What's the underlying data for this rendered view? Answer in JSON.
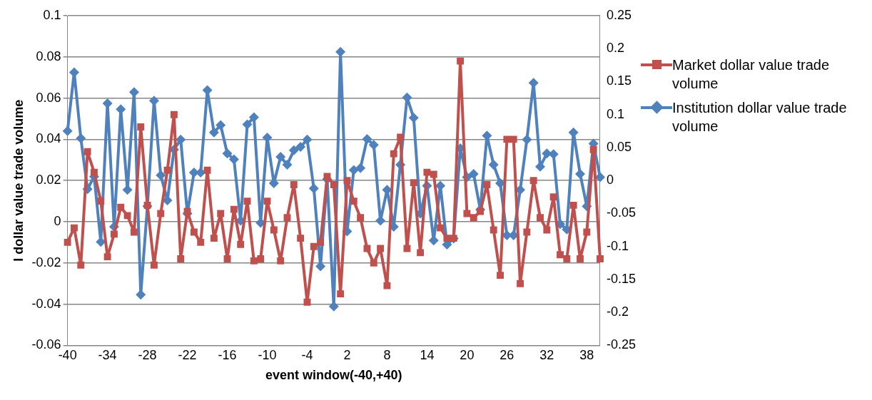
{
  "chart_data": {
    "type": "line",
    "xlabel": "event window(-40,+40)",
    "ylabel": "I dollar value trade volume",
    "categories": [
      "-40",
      null,
      null,
      null,
      null,
      null,
      "-34",
      null,
      null,
      null,
      null,
      null,
      "-28",
      null,
      null,
      null,
      null,
      null,
      "-22",
      null,
      null,
      null,
      null,
      null,
      "-16",
      null,
      null,
      null,
      null,
      null,
      "-10",
      null,
      null,
      null,
      null,
      null,
      "-4",
      null,
      null,
      null,
      null,
      null,
      "2",
      null,
      null,
      null,
      null,
      null,
      "8",
      null,
      null,
      null,
      null,
      null,
      "14",
      null,
      null,
      null,
      null,
      null,
      "20",
      null,
      null,
      null,
      null,
      null,
      "26",
      null,
      null,
      null,
      null,
      null,
      "32",
      null,
      null,
      null,
      null,
      null,
      "38",
      null,
      null
    ],
    "series": [
      {
        "name": "Market dollar value trade volume",
        "color": "#c0504d",
        "marker": "square",
        "values": [
          -0.01,
          -0.003,
          -0.021,
          0.034,
          0.024,
          0.01,
          -0.017,
          -0.006,
          0.007,
          0.003,
          -0.005,
          0.046,
          0.008,
          -0.021,
          0.004,
          0.025,
          0.052,
          -0.018,
          0.005,
          -0.005,
          -0.01,
          0.025,
          -0.008,
          0.004,
          -0.018,
          0.006,
          -0.011,
          0.01,
          -0.019,
          -0.018,
          0.01,
          -0.004,
          -0.019,
          0.002,
          0.018,
          -0.008,
          -0.039,
          -0.012,
          -0.01,
          0.022,
          0.018,
          -0.035,
          0.02,
          0.01,
          0.002,
          -0.013,
          -0.02,
          -0.013,
          -0.031,
          0.033,
          0.041,
          -0.013,
          0.019,
          -0.015,
          0.024,
          0.023,
          -0.003,
          -0.008,
          -0.008,
          0.078,
          0.004,
          0.002,
          0.005,
          0.018,
          -0.004,
          -0.026,
          0.04,
          0.04,
          -0.03,
          -0.005,
          0.02,
          0.002,
          -0.004,
          0.012,
          -0.016,
          -0.018,
          0.008,
          -0.018,
          -0.005,
          0.035,
          -0.018
        ]
      },
      {
        "name": "Institution dollar value trade volume",
        "color": "#4f81bd",
        "marker": "diamond",
        "axis": "y2",
        "values": [
          0.075,
          0.164,
          0.064,
          -0.013,
          0.006,
          -0.093,
          0.117,
          -0.07,
          0.108,
          -0.014,
          0.134,
          -0.173,
          -0.039,
          0.121,
          0.008,
          -0.03,
          0.047,
          0.062,
          -0.05,
          0.012,
          0.012,
          0.137,
          0.073,
          0.084,
          0.041,
          0.032,
          -0.061,
          0.085,
          0.096,
          -0.064,
          0.065,
          -0.004,
          0.036,
          0.024,
          0.046,
          0.051,
          0.062,
          -0.012,
          -0.13,
          0.002,
          -0.191,
          0.195,
          -0.077,
          0.016,
          0.019,
          0.063,
          0.054,
          -0.061,
          -0.014,
          -0.07,
          0.024,
          0.126,
          0.095,
          -0.05,
          -0.008,
          -0.091,
          -0.008,
          -0.097,
          -0.088,
          0.049,
          0.005,
          0.01,
          -0.044,
          0.068,
          0.024,
          -0.004,
          -0.083,
          -0.083,
          -0.014,
          0.062,
          0.148,
          0.021,
          0.041,
          0.04,
          -0.066,
          -0.074,
          0.073,
          0.01,
          -0.039,
          0.056,
          0.005
        ]
      }
    ],
    "ylim": [
      -0.06,
      0.1
    ],
    "yticks": [
      -0.06,
      -0.04,
      -0.02,
      0,
      0.02,
      0.04,
      0.06,
      0.08,
      0.1
    ],
    "y2lim": [
      -0.25,
      0.25
    ],
    "y2ticks": [
      -0.25,
      -0.2,
      -0.15,
      -0.1,
      -0.05,
      0,
      0.05,
      0.1,
      0.15,
      0.2,
      0.25
    ],
    "grid": "y",
    "legend": "right"
  }
}
